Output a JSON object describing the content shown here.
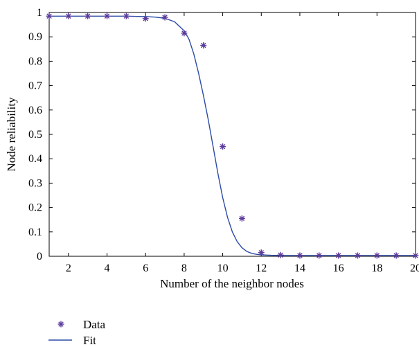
{
  "chart_data": {
    "type": "scatter",
    "xlabel": "Number of the neighbor nodes",
    "ylabel": "Node reliability",
    "xlim": [
      1,
      20
    ],
    "ylim": [
      0,
      1
    ],
    "xticks": [
      2,
      4,
      6,
      8,
      10,
      12,
      14,
      16,
      18,
      20
    ],
    "yticks": [
      0,
      0.1,
      0.2,
      0.3,
      0.4,
      0.5,
      0.6,
      0.7,
      0.8,
      0.9,
      1
    ],
    "ytick_labels": [
      "0",
      "0.1",
      "0.2",
      "0.3",
      "0.4",
      "0.5",
      "0.6",
      "0.7",
      "0.8",
      "0.9",
      "1"
    ],
    "grid": false,
    "legend_position": "bottom-left-outside",
    "series": [
      {
        "name": "Data",
        "marker": "asterisk",
        "color": "#5b3a9c",
        "x": [
          1,
          2,
          3,
          4,
          5,
          6,
          7,
          8,
          9,
          10,
          11,
          12,
          13,
          14,
          15,
          16,
          17,
          18,
          19,
          20
        ],
        "y": [
          0.985,
          0.985,
          0.985,
          0.985,
          0.985,
          0.975,
          0.98,
          0.915,
          0.865,
          0.45,
          0.155,
          0.015,
          0.005,
          0.003,
          0.003,
          0.003,
          0.003,
          0.003,
          0.003,
          0.003
        ]
      },
      {
        "name": "Fit",
        "style": "line",
        "color": "#2b4aa6",
        "x": [
          1,
          2,
          3,
          4,
          5,
          6,
          6.5,
          7,
          7.5,
          8,
          8.25,
          8.5,
          8.75,
          9,
          9.25,
          9.5,
          9.75,
          10,
          10.25,
          10.5,
          10.75,
          11,
          11.25,
          11.5,
          11.75,
          12,
          12.5,
          13,
          14,
          16,
          18,
          20
        ],
        "y": [
          0.985,
          0.985,
          0.985,
          0.985,
          0.985,
          0.983,
          0.981,
          0.976,
          0.962,
          0.925,
          0.89,
          0.83,
          0.75,
          0.66,
          0.56,
          0.45,
          0.34,
          0.24,
          0.16,
          0.1,
          0.06,
          0.035,
          0.02,
          0.012,
          0.008,
          0.006,
          0.004,
          0.003,
          0.003,
          0.003,
          0.003,
          0.003
        ]
      }
    ]
  }
}
